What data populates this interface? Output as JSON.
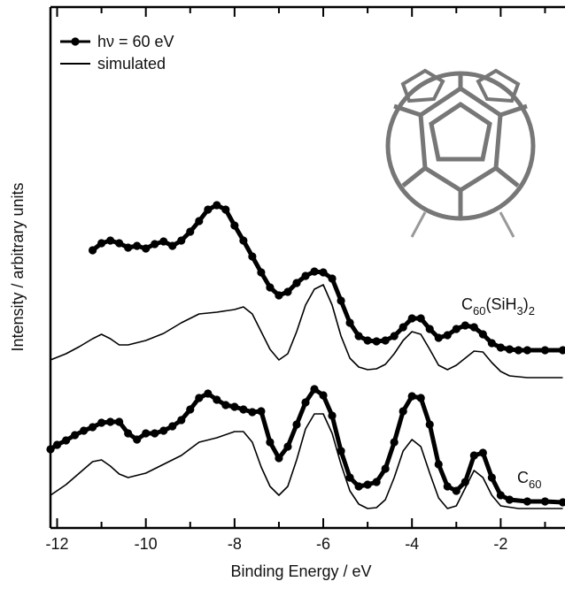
{
  "chart_data": {
    "type": "line",
    "x_label": "Binding Energy / eV",
    "y_label": "Intensity / arbitrary units",
    "xlim": [
      -12.15,
      -0.55
    ],
    "ylim": [
      0,
      589
    ],
    "xticks": [
      -12,
      -10,
      -8,
      -6,
      -4,
      -2
    ],
    "xminorticks": [
      -11,
      -9,
      -7,
      -5,
      -3,
      -1
    ],
    "legend": "top-left",
    "series": [
      {
        "name": "hν = 60 eV",
        "color": "#000000",
        "marker": "circle",
        "x": [
          -11.2,
          -11.0,
          -10.8,
          -10.6,
          -10.4,
          -10.2,
          -10.0,
          -9.8,
          -9.6,
          -9.4,
          -9.2,
          -9.0,
          -8.8,
          -8.6,
          -8.4,
          -8.2,
          -8.0,
          -7.8,
          -7.6,
          -7.4,
          -7.2,
          -7.0,
          -6.8,
          -6.6,
          -6.4,
          -6.2,
          -6.0,
          -5.8,
          -5.6,
          -5.4,
          -5.2,
          -5.0,
          -4.8,
          -4.6,
          -4.4,
          -4.2,
          -4.0,
          -3.8,
          -3.6,
          -3.4,
          -3.2,
          -3.0,
          -2.8,
          -2.6,
          -2.4,
          -2.2,
          -2.0,
          -1.8,
          -1.6,
          -1.4,
          -1.0,
          -0.6
        ],
        "values": [
          314,
          322,
          325,
          322,
          317,
          319,
          316,
          321,
          324,
          319,
          325,
          335,
          347,
          360,
          365,
          360,
          342,
          325,
          307,
          289,
          272,
          263,
          267,
          277,
          285,
          290,
          289,
          282,
          257,
          232,
          217,
          212,
          211,
          212,
          217,
          227,
          237,
          237,
          225,
          215,
          218,
          225,
          229,
          227,
          219,
          209,
          204,
          202,
          201,
          201,
          201,
          201
        ]
      },
      {
        "name": "simulated",
        "color": "#000000",
        "marker": "none",
        "x": [
          -12.15,
          -11.8,
          -11.5,
          -11.2,
          -11.0,
          -10.8,
          -10.6,
          -10.4,
          -10.0,
          -9.6,
          -9.2,
          -8.8,
          -8.4,
          -8.0,
          -7.8,
          -7.6,
          -7.4,
          -7.2,
          -7.0,
          -6.8,
          -6.6,
          -6.4,
          -6.2,
          -6.0,
          -5.8,
          -5.6,
          -5.4,
          -5.2,
          -5.0,
          -4.8,
          -4.6,
          -4.4,
          -4.2,
          -4.0,
          -3.8,
          -3.6,
          -3.4,
          -3.2,
          -3.0,
          -2.8,
          -2.6,
          -2.4,
          -2.2,
          -2.0,
          -1.8,
          -1.4,
          -0.6
        ],
        "values": [
          190,
          197,
          205,
          214,
          219,
          214,
          207,
          207,
          212,
          220,
          232,
          242,
          244,
          247,
          250,
          242,
          222,
          202,
          190,
          197,
          222,
          252,
          270,
          275,
          252,
          217,
          192,
          182,
          179,
          180,
          185,
          197,
          212,
          222,
          219,
          202,
          184,
          179,
          184,
          192,
          200,
          199,
          187,
          177,
          172,
          170,
          170
        ]
      },
      {
        "color": "#000000",
        "marker": "circle",
        "x": [
          -12.15,
          -12.0,
          -11.8,
          -11.6,
          -11.4,
          -11.2,
          -11.0,
          -10.8,
          -10.6,
          -10.4,
          -10.2,
          -10.0,
          -9.8,
          -9.6,
          -9.4,
          -9.2,
          -9.0,
          -8.8,
          -8.6,
          -8.4,
          -8.2,
          -8.0,
          -7.8,
          -7.6,
          -7.4,
          -7.2,
          -7.0,
          -6.8,
          -6.6,
          -6.4,
          -6.2,
          -6.0,
          -5.8,
          -5.6,
          -5.4,
          -5.2,
          -5.0,
          -4.8,
          -4.6,
          -4.4,
          -4.2,
          -4.0,
          -3.8,
          -3.6,
          -3.4,
          -3.2,
          -3.0,
          -2.8,
          -2.6,
          -2.4,
          -2.2,
          -2.0,
          -1.8,
          -1.4,
          -1.0,
          -0.6
        ],
        "values": [
          89,
          94,
          99,
          105,
          110,
          114,
          119,
          120,
          120,
          107,
          100,
          107,
          107,
          110,
          115,
          122,
          134,
          147,
          152,
          145,
          139,
          137,
          134,
          131,
          132,
          97,
          79,
          92,
          117,
          142,
          157,
          150,
          127,
          87,
          57,
          47,
          49,
          52,
          67,
          97,
          132,
          149,
          147,
          117,
          72,
          47,
          42,
          52,
          82,
          85,
          57,
          37,
          32,
          30,
          30,
          29
        ]
      },
      {
        "color": "#000000",
        "marker": "none",
        "x": [
          -12.15,
          -11.8,
          -11.5,
          -11.2,
          -11.0,
          -10.8,
          -10.6,
          -10.4,
          -10.0,
          -9.6,
          -9.2,
          -8.8,
          -8.4,
          -8.0,
          -7.8,
          -7.6,
          -7.4,
          -7.2,
          -7.0,
          -6.8,
          -6.6,
          -6.4,
          -6.2,
          -6.0,
          -5.8,
          -5.6,
          -5.4,
          -5.2,
          -5.0,
          -4.8,
          -4.6,
          -4.4,
          -4.2,
          -4.0,
          -3.8,
          -3.6,
          -3.4,
          -3.2,
          -3.0,
          -2.8,
          -2.6,
          -2.4,
          -2.2,
          -2.0,
          -1.6,
          -0.6
        ],
        "values": [
          37,
          49,
          62,
          75,
          77,
          70,
          61,
          57,
          62,
          72,
          82,
          97,
          102,
          109,
          109,
          97,
          69,
          47,
          37,
          47,
          77,
          112,
          129,
          129,
          107,
          72,
          42,
          27,
          22,
          23,
          32,
          57,
          87,
          100,
          92,
          62,
          34,
          22,
          25,
          45,
          65,
          57,
          37,
          25,
          22,
          22
        ]
      }
    ],
    "annotations": [
      {
        "parts": [
          "C",
          "60",
          "(SiH",
          "3",
          ")",
          "2"
        ]
      },
      {
        "parts": [
          "C",
          "60"
        ]
      }
    ]
  }
}
